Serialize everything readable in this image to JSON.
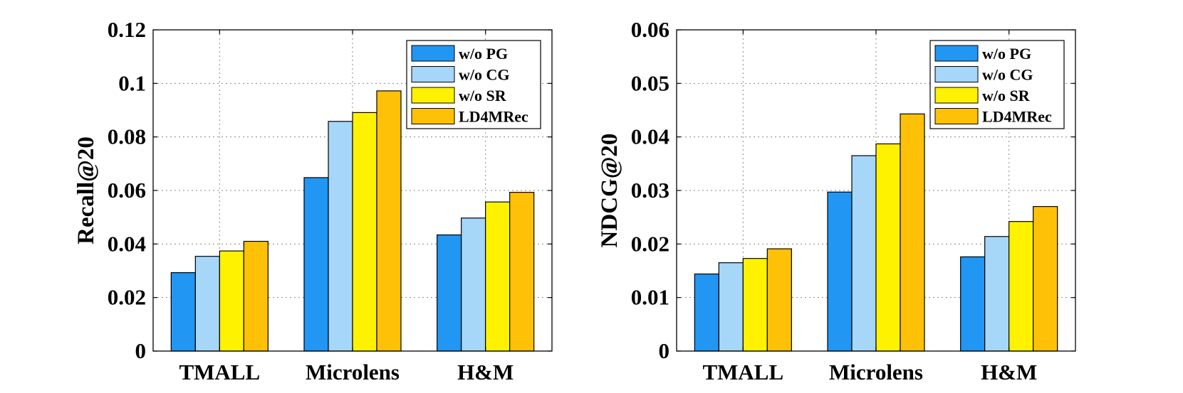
{
  "chart_data": [
    {
      "type": "bar",
      "title": "",
      "xlabel": "",
      "ylabel": "Recall@20",
      "ylim": [
        0,
        0.12
      ],
      "yticks": [
        0,
        0.02,
        0.04,
        0.06,
        0.08,
        0.1,
        0.12
      ],
      "ytick_labels": [
        "0",
        "0.02",
        "0.04",
        "0.06",
        "0.08",
        "0.1",
        "0.12"
      ],
      "grid": true,
      "legend_position": "top-right",
      "categories": [
        "TMALL",
        "Microlens",
        "H&M"
      ],
      "series": [
        {
          "name": "w/o PG",
          "color": "#2196F3",
          "values": [
            0.0293,
            0.0648,
            0.0434
          ]
        },
        {
          "name": "w/o CG",
          "color": "#A6D6F8",
          "values": [
            0.0354,
            0.0858,
            0.0497
          ]
        },
        {
          "name": "w/o SR",
          "color": "#FFF200",
          "values": [
            0.0374,
            0.0891,
            0.0557
          ]
        },
        {
          "name": "LD4MRec",
          "color": "#FFC107",
          "values": [
            0.041,
            0.0972,
            0.0593
          ]
        }
      ]
    },
    {
      "type": "bar",
      "title": "",
      "xlabel": "",
      "ylabel": "NDCG@20",
      "ylim": [
        0,
        0.06
      ],
      "yticks": [
        0,
        0.01,
        0.02,
        0.03,
        0.04,
        0.05,
        0.06
      ],
      "ytick_labels": [
        "0",
        "0.01",
        "0.02",
        "0.03",
        "0.04",
        "0.05",
        "0.06"
      ],
      "grid": true,
      "legend_position": "top-right",
      "categories": [
        "TMALL",
        "Microlens",
        "H&M"
      ],
      "series": [
        {
          "name": "w/o PG",
          "color": "#2196F3",
          "values": [
            0.0144,
            0.0297,
            0.0176
          ]
        },
        {
          "name": "w/o CG",
          "color": "#A6D6F8",
          "values": [
            0.0165,
            0.0365,
            0.0214
          ]
        },
        {
          "name": "w/o SR",
          "color": "#FFF200",
          "values": [
            0.0173,
            0.0387,
            0.0242
          ]
        },
        {
          "name": "LD4MRec",
          "color": "#FFC107",
          "values": [
            0.0191,
            0.0443,
            0.027
          ]
        }
      ]
    }
  ]
}
